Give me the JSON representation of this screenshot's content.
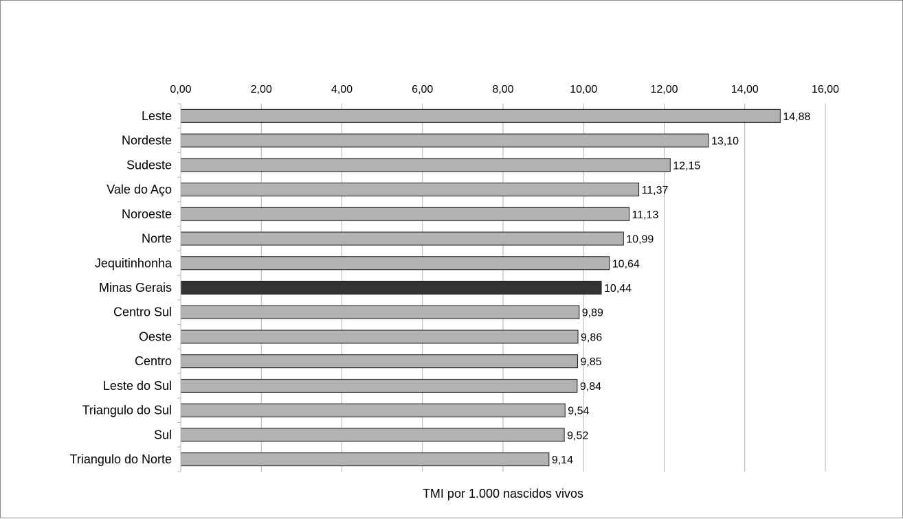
{
  "chart_data": {
    "type": "bar",
    "orientation": "horizontal",
    "title": "",
    "xlabel": "TMI por 1.000 nascidos vivos",
    "ylabel": "",
    "xlim": [
      0,
      16
    ],
    "x_ticks": [
      "0,00",
      "2,00",
      "4,00",
      "6,00",
      "8,00",
      "10,00",
      "12,00",
      "14,00",
      "16,00"
    ],
    "x_axis_position": "top",
    "grid": true,
    "legend": "none",
    "categories": [
      "Leste",
      "Nordeste",
      "Sudeste",
      "Vale do Aço",
      "Noroeste",
      "Norte",
      "Jequitinhonha",
      "Minas Gerais",
      "Centro Sul",
      "Oeste",
      "Centro",
      "Leste do Sul",
      "Triangulo do Sul",
      "Sul",
      "Triangulo do Norte"
    ],
    "values": [
      14.88,
      13.1,
      12.15,
      11.37,
      11.13,
      10.99,
      10.64,
      10.44,
      9.89,
      9.86,
      9.85,
      9.84,
      9.54,
      9.52,
      9.14
    ],
    "value_labels": [
      "14,88",
      "13,10",
      "12,15",
      "11,37",
      "11,13",
      "10,99",
      "10,64",
      "10,44",
      "9,89",
      "9,86",
      "9,85",
      "9,84",
      "9,54",
      "9,52",
      "9,14"
    ],
    "highlight_category": "Minas Gerais",
    "colors": {
      "bar": "#b2b2b2",
      "highlight": "#333333",
      "bar_edge": "#1a1a1a",
      "grid": "#b3b3b3"
    }
  }
}
